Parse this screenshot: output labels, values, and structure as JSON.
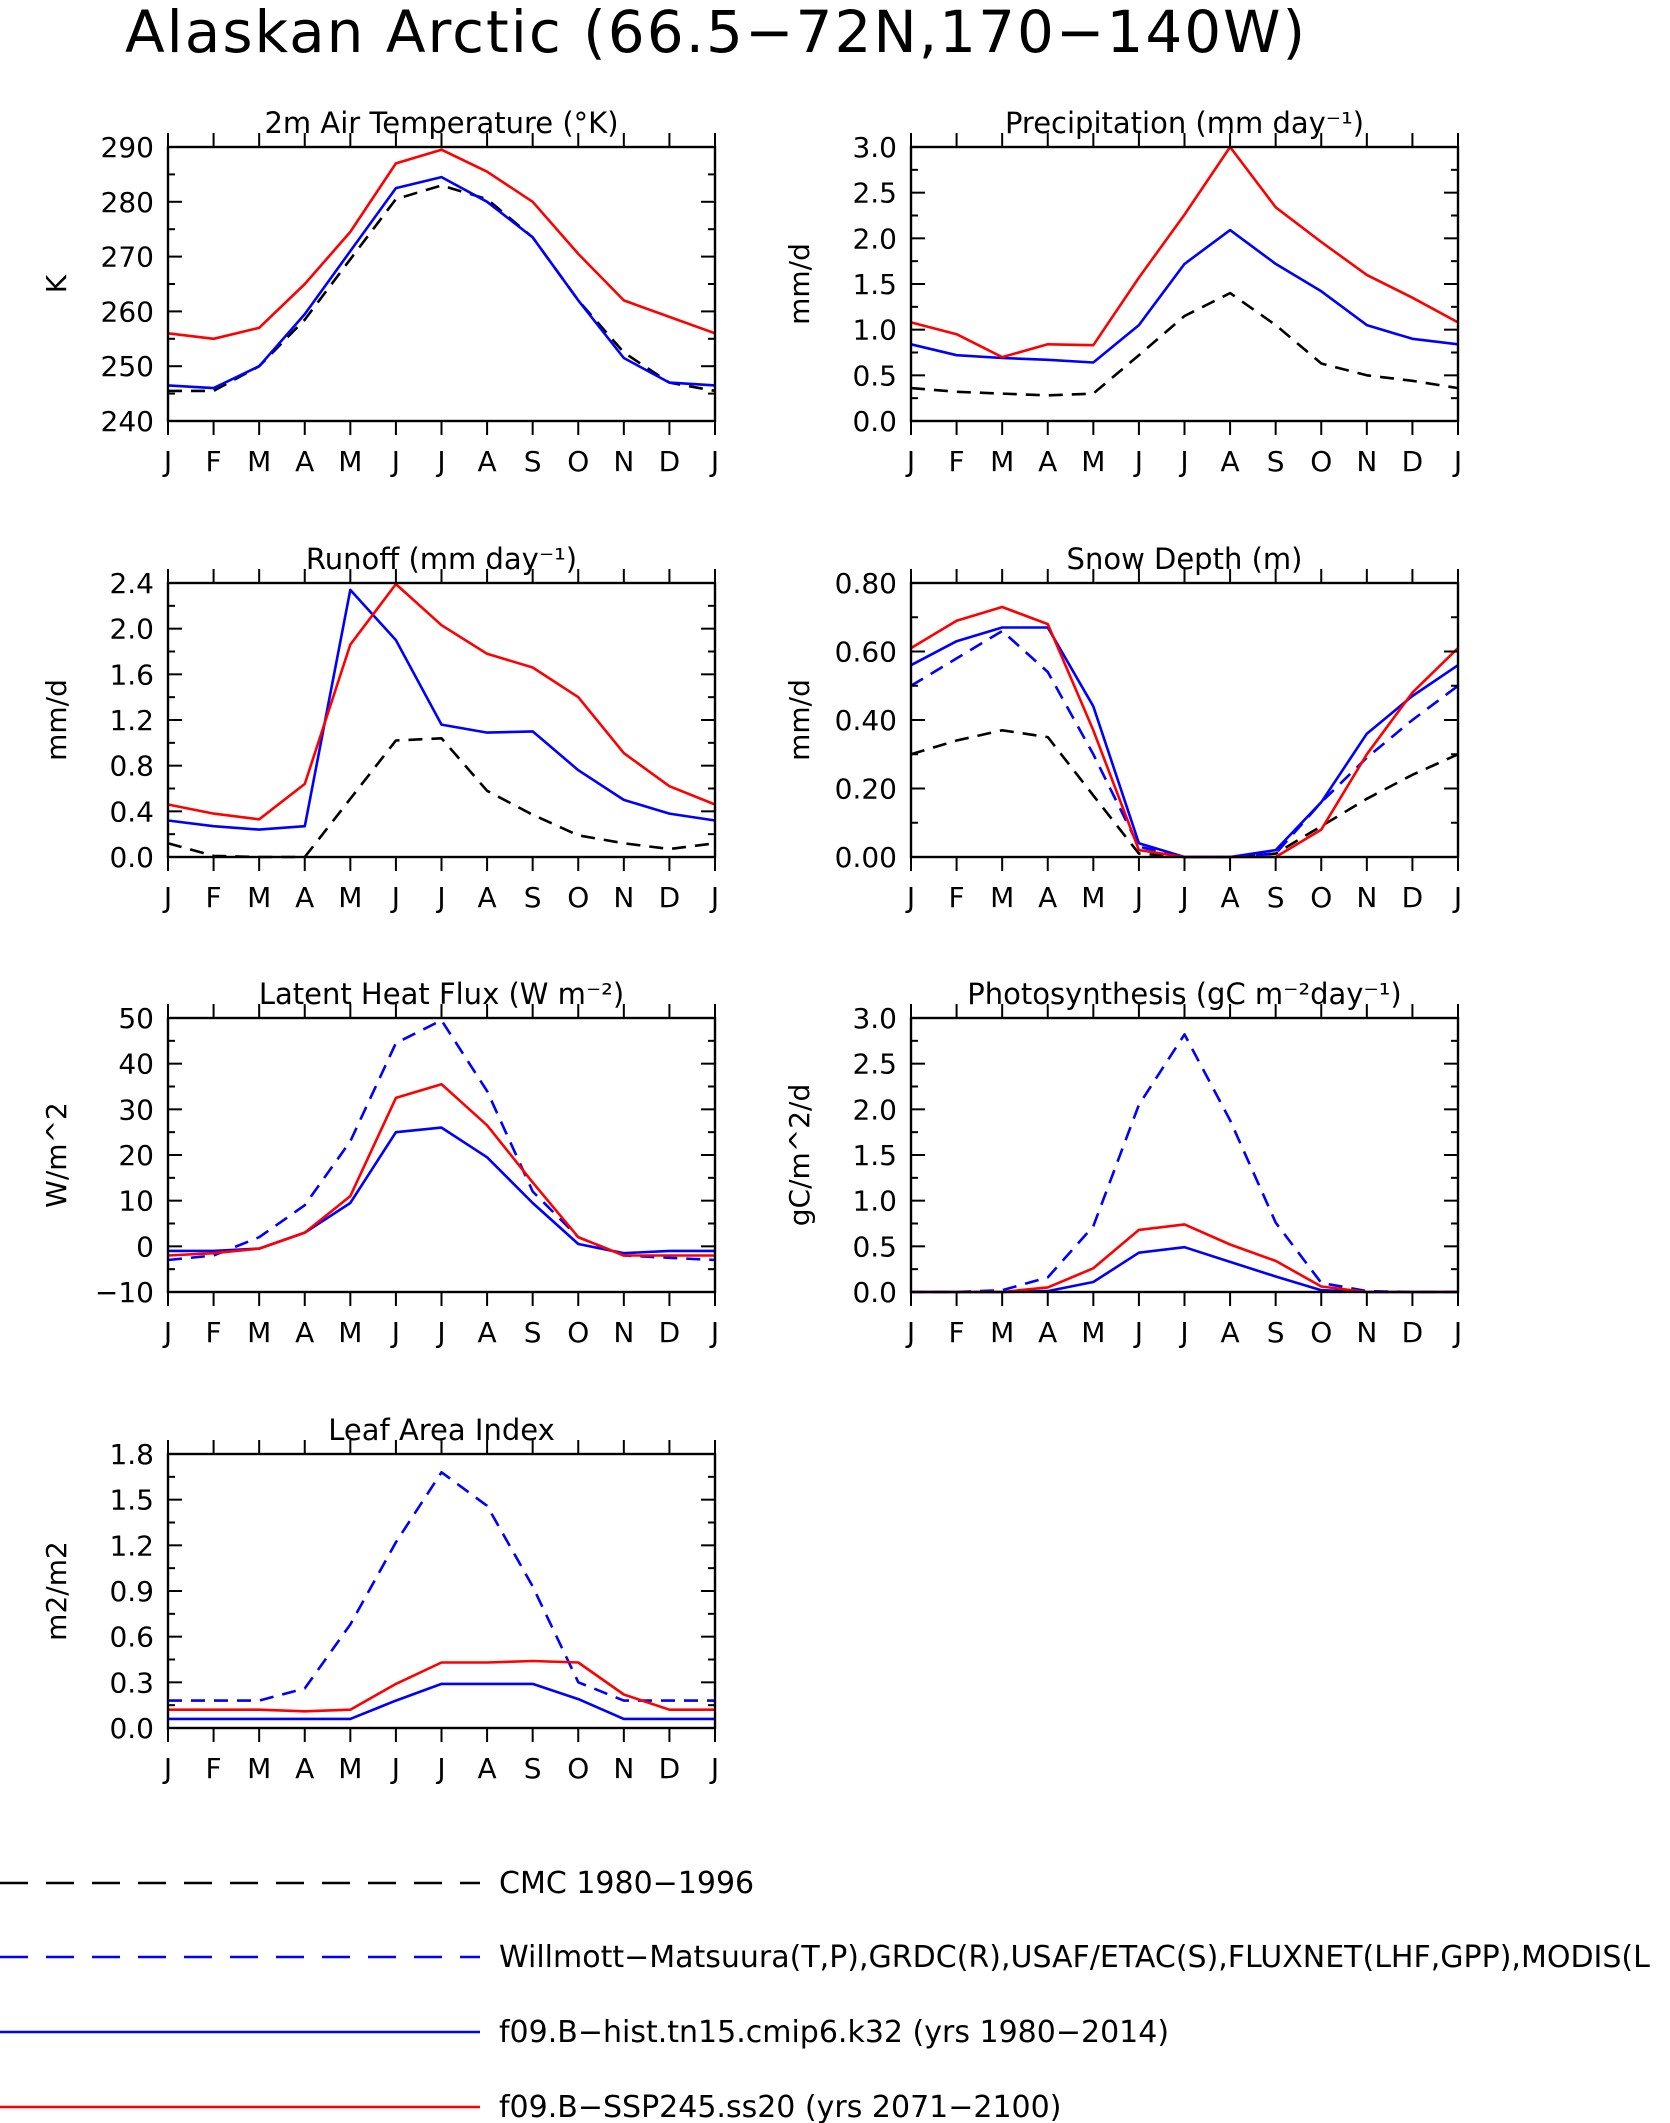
{
  "page_title": "Alaskan Arctic (66.5−72N,170−140W)",
  "month_labels": [
    "J",
    "F",
    "M",
    "A",
    "M",
    "J",
    "J",
    "A",
    "S",
    "O",
    "N",
    "D",
    "J"
  ],
  "colors": {
    "black": "#000000",
    "blue": "#0000ff",
    "red": "#ff0000"
  },
  "legend": [
    {
      "label": "CMC 1980−1996",
      "color": "#000000",
      "style": "dashed"
    },
    {
      "label": "Willmott−Matsuura(T,P),GRDC(R),USAF/ETAC(S),FLUXNET(LHF,GPP),MODIS(L",
      "color": "#0000ff",
      "style": "dashed"
    },
    {
      "label": "f09.B−hist.tn15.cmip6.k32 (yrs 1980−2014)",
      "color": "#0000ff",
      "style": "solid"
    },
    {
      "label": "f09.B−SSP245.ss20 (yrs 2071−2100)",
      "color": "#ff0000",
      "style": "solid"
    }
  ],
  "chart_data": [
    {
      "type": "line",
      "title": "2m Air Temperature (°K)",
      "ylabel": "K",
      "ylim": [
        240,
        290
      ],
      "yticks": [
        "240",
        "250",
        "260",
        "270",
        "280",
        "290"
      ],
      "x": [
        "J",
        "F",
        "M",
        "A",
        "M",
        "J",
        "J",
        "A",
        "S",
        "O",
        "N",
        "D",
        "J"
      ],
      "series": [
        {
          "color": "#000000",
          "dash": true,
          "values": [
            245.5,
            245.5,
            250,
            258.5,
            269.5,
            280.5,
            283,
            280.5,
            273.5,
            262,
            252.5,
            247,
            245.5
          ]
        },
        {
          "color": "#0000ff",
          "dash": false,
          "values": [
            246.5,
            246,
            250,
            259.5,
            271,
            282.5,
            284.5,
            280,
            273.5,
            262,
            251.5,
            247,
            246.5
          ]
        },
        {
          "color": "#ff0000",
          "dash": false,
          "values": [
            256,
            255,
            257,
            265,
            274.5,
            287,
            289.5,
            285.5,
            280,
            270.5,
            262,
            259,
            256
          ]
        }
      ]
    },
    {
      "type": "line",
      "title": "Precipitation (mm day⁻¹)",
      "ylabel": "mm/d",
      "ylim": [
        0,
        3
      ],
      "yticks": [
        "0.0",
        "0.5",
        "1.0",
        "1.5",
        "2.0",
        "2.5",
        "3.0"
      ],
      "x": [
        "J",
        "F",
        "M",
        "A",
        "M",
        "J",
        "J",
        "A",
        "S",
        "O",
        "N",
        "D",
        "J"
      ],
      "series": [
        {
          "color": "#000000",
          "dash": true,
          "values": [
            0.36,
            0.32,
            0.3,
            0.28,
            0.3,
            0.72,
            1.15,
            1.4,
            1.05,
            0.63,
            0.5,
            0.44,
            0.36
          ]
        },
        {
          "color": "#0000ff",
          "dash": false,
          "values": [
            0.84,
            0.72,
            0.69,
            0.67,
            0.64,
            1.05,
            1.72,
            2.09,
            1.72,
            1.42,
            1.05,
            0.9,
            0.84
          ]
        },
        {
          "color": "#ff0000",
          "dash": false,
          "values": [
            1.08,
            0.95,
            0.7,
            0.84,
            0.83,
            1.57,
            2.26,
            3.0,
            2.34,
            1.96,
            1.6,
            1.35,
            1.08
          ]
        }
      ]
    },
    {
      "type": "line",
      "title": "Runoff (mm day⁻¹)",
      "ylabel": "mm/d",
      "ylim": [
        0,
        2.4
      ],
      "yticks": [
        "0.0",
        "0.4",
        "0.8",
        "1.2",
        "1.6",
        "2.0",
        "2.4"
      ],
      "x": [
        "J",
        "F",
        "M",
        "A",
        "M",
        "J",
        "J",
        "A",
        "S",
        "O",
        "N",
        "D",
        "J"
      ],
      "series": [
        {
          "color": "#000000",
          "dash": true,
          "values": [
            0.12,
            0.01,
            0.0,
            0.0,
            0.51,
            1.02,
            1.04,
            0.58,
            0.37,
            0.19,
            0.12,
            0.07,
            0.12
          ]
        },
        {
          "color": "#0000ff",
          "dash": false,
          "values": [
            0.32,
            0.27,
            0.24,
            0.27,
            2.34,
            1.9,
            1.16,
            1.09,
            1.1,
            0.76,
            0.5,
            0.38,
            0.32
          ]
        },
        {
          "color": "#ff0000",
          "dash": false,
          "values": [
            0.46,
            0.38,
            0.33,
            0.64,
            1.86,
            2.39,
            2.03,
            1.78,
            1.66,
            1.4,
            0.91,
            0.62,
            0.46
          ]
        }
      ]
    },
    {
      "type": "line",
      "title": "Snow Depth (m)",
      "ylabel": "mm/d",
      "ylim": [
        0,
        0.8
      ],
      "yticks": [
        "0.00",
        "0.20",
        "0.40",
        "0.60",
        "0.80"
      ],
      "x": [
        "J",
        "F",
        "M",
        "A",
        "M",
        "J",
        "J",
        "A",
        "S",
        "O",
        "N",
        "D",
        "J"
      ],
      "series": [
        {
          "color": "#000000",
          "dash": true,
          "values": [
            0.3,
            0.34,
            0.37,
            0.35,
            0.18,
            0.01,
            0.0,
            0.0,
            0.01,
            0.09,
            0.17,
            0.24,
            0.3
          ]
        },
        {
          "color": "#0000ff",
          "dash": true,
          "values": [
            0.5,
            0.58,
            0.66,
            0.54,
            0.3,
            0.03,
            0.0,
            0.0,
            0.01,
            0.16,
            0.29,
            0.4,
            0.5
          ]
        },
        {
          "color": "#0000ff",
          "dash": false,
          "values": [
            0.56,
            0.63,
            0.67,
            0.67,
            0.44,
            0.04,
            0.0,
            0.0,
            0.02,
            0.16,
            0.36,
            0.47,
            0.56
          ]
        },
        {
          "color": "#ff0000",
          "dash": false,
          "values": [
            0.61,
            0.69,
            0.73,
            0.68,
            0.37,
            0.02,
            0.0,
            0.0,
            0.0,
            0.08,
            0.3,
            0.48,
            0.61
          ]
        }
      ]
    },
    {
      "type": "line",
      "title": "Latent Heat Flux (W m⁻²)",
      "ylabel": "W/m^2",
      "ylim": [
        -10,
        50
      ],
      "yticks": [
        "−10",
        "0",
        "10",
        "20",
        "30",
        "40",
        "50"
      ],
      "x": [
        "J",
        "F",
        "M",
        "A",
        "M",
        "J",
        "J",
        "A",
        "S",
        "O",
        "N",
        "D",
        "J"
      ],
      "series": [
        {
          "color": "#0000ff",
          "dash": true,
          "values": [
            -3,
            -2,
            2,
            9,
            23,
            44.5,
            49.5,
            34,
            12,
            2,
            -2,
            -2.5,
            -3
          ]
        },
        {
          "color": "#0000ff",
          "dash": false,
          "values": [
            -1,
            -1,
            -0.5,
            3,
            9.5,
            25,
            26,
            19.5,
            9.5,
            0.5,
            -1.5,
            -1,
            -1
          ]
        },
        {
          "color": "#ff0000",
          "dash": false,
          "values": [
            -2,
            -1.5,
            -0.5,
            3,
            11,
            32.5,
            35.5,
            26.5,
            14,
            2,
            -2,
            -2,
            -2
          ]
        }
      ]
    },
    {
      "type": "line",
      "title": "Photosynthesis (gC m⁻²day⁻¹)",
      "ylabel": "gC/m^2/d",
      "ylim": [
        0,
        3
      ],
      "yticks": [
        "0.0",
        "0.5",
        "1.0",
        "1.5",
        "2.0",
        "2.5",
        "3.0"
      ],
      "x": [
        "J",
        "F",
        "M",
        "A",
        "M",
        "J",
        "J",
        "A",
        "S",
        "O",
        "N",
        "D",
        "J"
      ],
      "series": [
        {
          "color": "#0000ff",
          "dash": true,
          "values": [
            0,
            0,
            0.02,
            0.16,
            0.72,
            2.05,
            2.82,
            1.88,
            0.76,
            0.1,
            0.01,
            0,
            0
          ]
        },
        {
          "color": "#0000ff",
          "dash": false,
          "values": [
            0,
            0,
            0,
            0.01,
            0.11,
            0.43,
            0.49,
            0.33,
            0.17,
            0.02,
            0,
            0,
            0
          ]
        },
        {
          "color": "#ff0000",
          "dash": false,
          "values": [
            0,
            0,
            0,
            0.05,
            0.26,
            0.68,
            0.74,
            0.52,
            0.34,
            0.06,
            0,
            0,
            0
          ]
        }
      ]
    },
    {
      "type": "line",
      "title": "Leaf Area Index",
      "ylabel": "m2/m2",
      "ylim": [
        0,
        1.8
      ],
      "yticks": [
        "0.0",
        "0.3",
        "0.6",
        "0.9",
        "1.2",
        "1.5",
        "1.8"
      ],
      "x": [
        "J",
        "F",
        "M",
        "A",
        "M",
        "J",
        "J",
        "A",
        "S",
        "O",
        "N",
        "D",
        "J"
      ],
      "series": [
        {
          "color": "#0000ff",
          "dash": true,
          "values": [
            0.18,
            0.18,
            0.18,
            0.26,
            0.68,
            1.22,
            1.68,
            1.46,
            0.93,
            0.3,
            0.18,
            0.18,
            0.18
          ]
        },
        {
          "color": "#0000ff",
          "dash": false,
          "values": [
            0.06,
            0.06,
            0.06,
            0.06,
            0.06,
            0.18,
            0.29,
            0.29,
            0.29,
            0.19,
            0.06,
            0.06,
            0.06
          ]
        },
        {
          "color": "#ff0000",
          "dash": false,
          "values": [
            0.12,
            0.12,
            0.12,
            0.11,
            0.12,
            0.29,
            0.43,
            0.43,
            0.44,
            0.43,
            0.22,
            0.12,
            0.12
          ]
        }
      ]
    }
  ]
}
